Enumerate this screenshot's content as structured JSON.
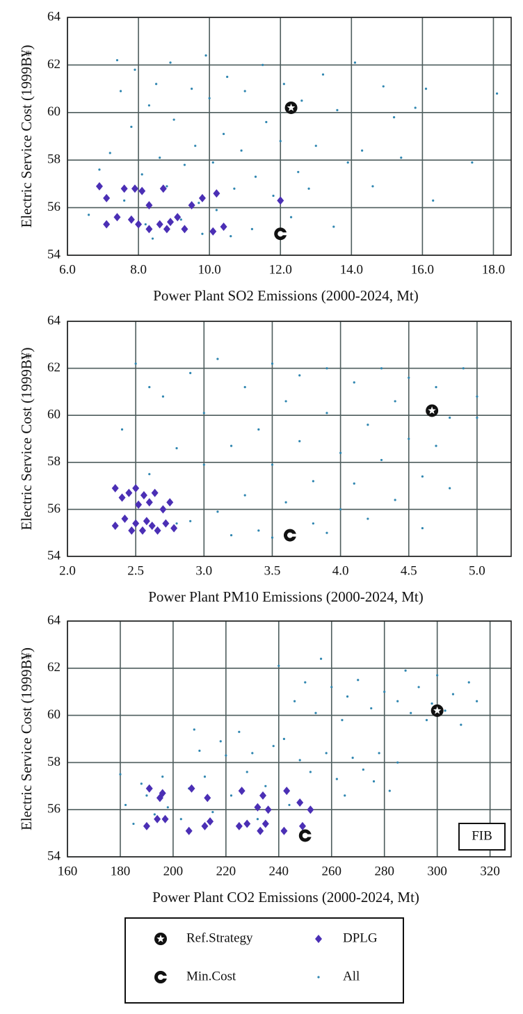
{
  "chart_data": [
    {
      "type": "scatter",
      "x_label": "Power Plant SO2 Emissions (2000-2024, Mt)",
      "y_label": "Electric Service Cost (1999B¥)",
      "xlim": [
        6,
        18.5
      ],
      "ylim": [
        54,
        64
      ],
      "xticks": [
        {
          "value": 6,
          "label": "6.0"
        },
        {
          "value": 8,
          "label": "8.0"
        },
        {
          "value": 10,
          "label": "10.0"
        },
        {
          "value": 12,
          "label": "12.0"
        },
        {
          "value": 14,
          "label": "14.0"
        },
        {
          "value": 16,
          "label": "16.0"
        },
        {
          "value": 18,
          "label": "18.0"
        }
      ],
      "yticks": [
        54,
        56,
        58,
        60,
        62,
        64
      ],
      "grid": true,
      "series": [
        {
          "name": "Ref.Strategy",
          "color": "#111111",
          "marker": "star",
          "x": [
            12.3
          ],
          "values": [
            60.2
          ]
        },
        {
          "name": "DPLG",
          "color": "#4b2fb5",
          "marker": "diamond",
          "x": [
            6.9,
            7.1,
            7.1,
            7.4,
            7.6,
            7.8,
            7.9,
            8.0,
            8.1,
            8.3,
            8.3,
            8.6,
            8.7,
            8.8,
            8.9,
            9.1,
            9.3,
            9.5,
            9.8,
            10.1,
            10.2,
            10.4,
            12.0
          ],
          "values": [
            56.9,
            55.3,
            56.4,
            55.6,
            56.8,
            55.5,
            56.8,
            55.3,
            56.7,
            55.1,
            56.1,
            55.3,
            56.8,
            55.1,
            55.4,
            55.6,
            55.1,
            56.1,
            56.4,
            55.0,
            56.6,
            55.2,
            56.3
          ]
        },
        {
          "name": "Min.Cost",
          "color": "#111111",
          "marker": "cmark",
          "x": [
            12.0
          ],
          "values": [
            54.9
          ]
        },
        {
          "name": "All",
          "color": "#2f86b0",
          "marker": "dot",
          "x": [
            6.6,
            6.9,
            7.2,
            7.4,
            7.5,
            7.8,
            7.9,
            8.1,
            8.2,
            8.3,
            8.5,
            8.6,
            8.8,
            8.9,
            9.0,
            9.2,
            9.3,
            9.5,
            9.6,
            9.7,
            9.9,
            10.0,
            10.1,
            10.2,
            10.4,
            10.5,
            10.7,
            10.9,
            11.0,
            11.2,
            11.3,
            11.5,
            11.6,
            11.8,
            12.0,
            12.1,
            12.3,
            12.5,
            12.6,
            12.8,
            13.0,
            13.2,
            13.5,
            13.6,
            13.9,
            14.1,
            14.3,
            14.6,
            14.9,
            15.2,
            15.4,
            15.8,
            16.1,
            16.3,
            17.4,
            18.1,
            8.4,
            9.8,
            7.6,
            10.6
          ],
          "values": [
            55.7,
            57.6,
            58.3,
            62.2,
            60.9,
            59.4,
            61.8,
            57.4,
            55.3,
            60.3,
            61.2,
            58.1,
            56.9,
            62.1,
            59.7,
            55.5,
            57.8,
            61.0,
            58.6,
            56.2,
            62.4,
            60.6,
            57.9,
            55.9,
            59.1,
            61.5,
            56.8,
            58.4,
            60.9,
            55.1,
            57.3,
            62.0,
            59.6,
            56.5,
            58.8,
            61.2,
            55.6,
            57.5,
            60.5,
            56.8,
            58.6,
            61.6,
            55.2,
            60.1,
            57.9,
            62.1,
            58.4,
            56.9,
            61.1,
            59.8,
            58.1,
            60.2,
            61.0,
            56.3,
            57.9,
            60.8,
            54.7,
            54.9,
            56.3,
            54.8
          ]
        }
      ]
    },
    {
      "type": "scatter",
      "x_label": "Power Plant PM10 Emissions (2000-2024, Mt)",
      "y_label": "Electric Service Cost (1999B¥)",
      "xlim": [
        2,
        5.25
      ],
      "ylim": [
        54,
        64
      ],
      "xticks": [
        {
          "value": 2,
          "label": "2.0"
        },
        {
          "value": 2.5,
          "label": "2.5"
        },
        {
          "value": 3,
          "label": "3.0"
        },
        {
          "value": 3.5,
          "label": "3.5"
        },
        {
          "value": 4,
          "label": "4.0"
        },
        {
          "value": 4.5,
          "label": "4.5"
        },
        {
          "value": 5,
          "label": "5.0"
        }
      ],
      "yticks": [
        54,
        56,
        58,
        60,
        62,
        64
      ],
      "grid": true,
      "series": [
        {
          "name": "Ref.Strategy",
          "color": "#111111",
          "marker": "star",
          "x": [
            4.67
          ],
          "values": [
            60.2
          ]
        },
        {
          "name": "DPLG",
          "color": "#4b2fb5",
          "marker": "diamond",
          "x": [
            2.35,
            2.35,
            2.4,
            2.42,
            2.45,
            2.47,
            2.5,
            2.5,
            2.52,
            2.55,
            2.56,
            2.58,
            2.6,
            2.62,
            2.64,
            2.66,
            2.7,
            2.72,
            2.75,
            2.78
          ],
          "values": [
            56.9,
            55.3,
            56.5,
            55.6,
            56.7,
            55.1,
            56.9,
            55.4,
            56.2,
            55.1,
            56.6,
            55.5,
            56.3,
            55.3,
            56.7,
            55.1,
            56.0,
            55.4,
            56.3,
            55.2
          ]
        },
        {
          "name": "Min.Cost",
          "color": "#111111",
          "marker": "cmark",
          "x": [
            3.63
          ],
          "values": [
            54.9
          ]
        },
        {
          "name": "All",
          "color": "#2f86b0",
          "marker": "dot",
          "x": [
            2.4,
            2.5,
            2.6,
            2.7,
            2.8,
            2.9,
            2.9,
            3.0,
            3.0,
            3.1,
            3.1,
            3.2,
            3.3,
            3.3,
            3.4,
            3.4,
            3.5,
            3.5,
            3.6,
            3.6,
            3.7,
            3.7,
            3.8,
            3.8,
            3.9,
            3.9,
            4.0,
            4.0,
            4.1,
            4.1,
            4.2,
            4.2,
            4.3,
            4.3,
            4.4,
            4.4,
            4.5,
            4.5,
            4.6,
            4.6,
            4.7,
            4.7,
            4.8,
            4.8,
            4.9,
            5.0,
            5.0,
            2.6,
            2.8,
            3.2,
            3.5,
            3.9
          ],
          "values": [
            59.4,
            62.2,
            57.5,
            60.8,
            58.6,
            55.5,
            61.8,
            57.9,
            60.1,
            55.9,
            62.4,
            58.7,
            56.6,
            61.2,
            59.4,
            55.1,
            57.9,
            62.2,
            60.6,
            56.3,
            58.9,
            61.7,
            55.4,
            57.2,
            60.1,
            62.0,
            58.4,
            56.0,
            61.4,
            57.1,
            59.6,
            55.6,
            62.0,
            58.1,
            60.6,
            56.4,
            59.0,
            61.6,
            57.4,
            55.2,
            61.2,
            58.7,
            59.9,
            56.9,
            62.0,
            60.8,
            59.9,
            61.2,
            55.4,
            54.9,
            54.8,
            55.0
          ]
        }
      ]
    },
    {
      "type": "scatter",
      "x_label": "Power Plant CO2 Emissions (2000-2024, Mt)",
      "y_label": "Electric Service Cost (1999B¥)",
      "xlim": [
        160,
        328
      ],
      "ylim": [
        54,
        64
      ],
      "xticks": [
        160,
        180,
        200,
        220,
        240,
        260,
        280,
        300,
        320
      ],
      "yticks": [
        54,
        56,
        58,
        60,
        62,
        64
      ],
      "grid": true,
      "annotation": "FIB",
      "series": [
        {
          "name": "Ref.Strategy",
          "color": "#111111",
          "marker": "star",
          "x": [
            300
          ],
          "values": [
            60.2
          ]
        },
        {
          "name": "DPLG",
          "color": "#4b2fb5",
          "marker": "diamond",
          "x": [
            190,
            191,
            194,
            195,
            196,
            197,
            206,
            207,
            212,
            213,
            214,
            225,
            226,
            228,
            232,
            233,
            234,
            235,
            236,
            242,
            243,
            248,
            249,
            252
          ],
          "values": [
            55.3,
            56.9,
            55.6,
            56.5,
            56.7,
            55.6,
            55.1,
            56.9,
            55.3,
            56.5,
            55.5,
            55.3,
            56.8,
            55.4,
            56.1,
            55.1,
            56.6,
            55.4,
            56.0,
            55.1,
            56.8,
            56.3,
            55.3,
            56.0
          ]
        },
        {
          "name": "Min.Cost",
          "color": "#111111",
          "marker": "cmark",
          "x": [
            250
          ],
          "values": [
            54.9
          ]
        },
        {
          "name": "All",
          "color": "#2f86b0",
          "marker": "dot",
          "x": [
            180,
            182,
            185,
            188,
            190,
            193,
            196,
            198,
            203,
            206,
            208,
            210,
            212,
            215,
            218,
            220,
            222,
            225,
            228,
            230,
            232,
            235,
            238,
            240,
            242,
            244,
            246,
            248,
            250,
            252,
            254,
            256,
            258,
            260,
            262,
            264,
            266,
            268,
            270,
            272,
            275,
            278,
            280,
            282,
            285,
            288,
            290,
            293,
            296,
            298,
            300,
            303,
            306,
            309,
            312,
            315,
            285,
            276,
            265
          ],
          "values": [
            57.5,
            56.2,
            55.4,
            57.1,
            56.6,
            55.8,
            57.4,
            56.1,
            55.6,
            56.9,
            59.4,
            58.5,
            57.4,
            55.9,
            58.9,
            58.3,
            56.6,
            59.3,
            57.6,
            58.4,
            55.6,
            57.0,
            58.7,
            62.1,
            59.0,
            56.2,
            60.6,
            58.1,
            61.4,
            57.6,
            60.1,
            62.4,
            58.4,
            61.2,
            57.3,
            59.8,
            60.8,
            58.2,
            61.5,
            57.7,
            60.3,
            58.4,
            61.0,
            56.8,
            60.6,
            61.9,
            60.1,
            61.2,
            59.8,
            60.5,
            61.7,
            60.2,
            60.9,
            59.6,
            61.4,
            60.6,
            58.0,
            57.2,
            56.6
          ]
        }
      ]
    }
  ]
}
